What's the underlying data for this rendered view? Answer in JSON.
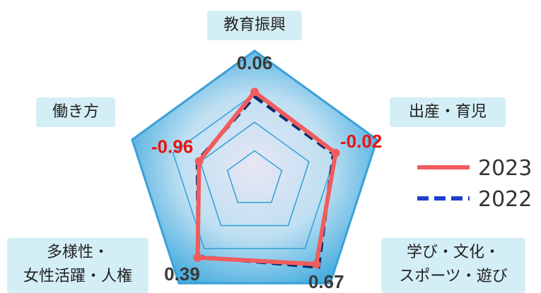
{
  "chart_data": {
    "type": "radar",
    "axes": [
      "教育振興",
      "出産・育児",
      "学び・文化・スポーツ・遊び",
      "多様性・女性活躍・人権",
      "働き方"
    ],
    "axis_label_lines": [
      [
        "教育振興"
      ],
      [
        "出産・育児"
      ],
      [
        "学び・文化・",
        "スポーツ・遊び"
      ],
      [
        "多様性・",
        "女性活躍・人権"
      ],
      [
        "働き方"
      ]
    ],
    "rlim": [
      -3,
      1.5
    ],
    "rings": [
      -2,
      -1,
      0,
      1.5
    ],
    "series": [
      {
        "name": "2023",
        "values": [
          0.06,
          -0.02,
          0.67,
          0.39,
          -0.96
        ],
        "color": "#f25c5c",
        "style": "solid"
      },
      {
        "name": "2022",
        "values": [
          -0.1,
          -0.1,
          0.8,
          0.35,
          -0.9
        ],
        "color": "#0a2a6e",
        "style": "dashed"
      }
    ],
    "value_labels": [
      {
        "text": "0.06",
        "color": "#3a3a3a"
      },
      {
        "text": "-0.02",
        "color": "#ee1111"
      },
      {
        "text": "0.67",
        "color": "#3a3a3a"
      },
      {
        "text": "0.39",
        "color": "#3a3a3a"
      },
      {
        "text": "-0.96",
        "color": "#ee1111"
      }
    ],
    "legend": {
      "position": "right",
      "entries": [
        "2023",
        "2022"
      ]
    }
  }
}
